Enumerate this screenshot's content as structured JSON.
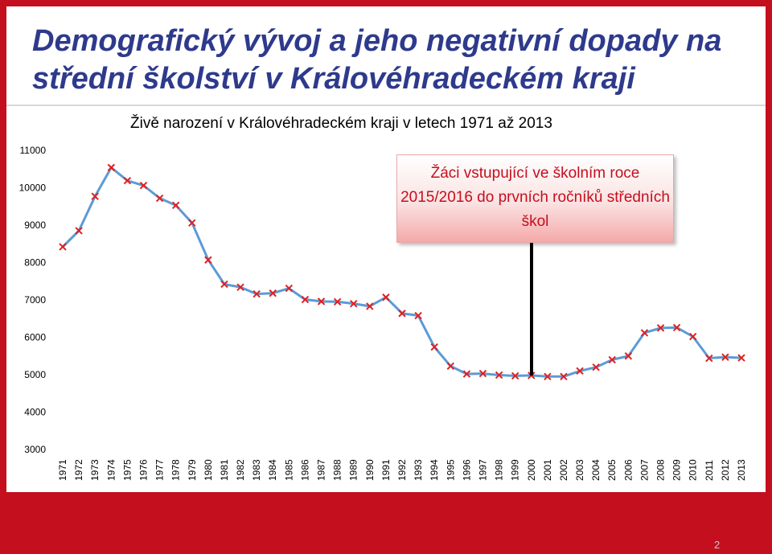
{
  "slide": {
    "title": "Demografický vývoj a jeho negativní dopady na střední školství v Královéhradeckém kraji",
    "page_number": "2",
    "accent_color": "#c40f1e",
    "title_color": "#2e3a8c"
  },
  "callout": {
    "text": "Žáci vstupující ve školním roce 2015/2016 do prvních ročníků středních škol",
    "marker_year": "2000"
  },
  "chart_data": {
    "type": "line",
    "title": "Živě narození v Královéhradeckém kraji v letech 1971 až 2013",
    "xlabel": "",
    "ylabel": "",
    "ylim": [
      3000,
      11000
    ],
    "yticks": [
      3000,
      4000,
      5000,
      6000,
      7000,
      8000,
      9000,
      10000,
      11000
    ],
    "grid": false,
    "line_color": "#5b9bd5",
    "marker_color": "#e02020",
    "categories": [
      "1971",
      "1972",
      "1973",
      "1974",
      "1975",
      "1976",
      "1977",
      "1978",
      "1979",
      "1980",
      "1981",
      "1982",
      "1983",
      "1984",
      "1985",
      "1986",
      "1987",
      "1988",
      "1989",
      "1990",
      "1991",
      "1992",
      "1993",
      "1994",
      "1995",
      "1996",
      "1997",
      "1998",
      "1999",
      "2000",
      "2001",
      "2002",
      "2003",
      "2004",
      "2005",
      "2006",
      "2007",
      "2008",
      "2009",
      "2010",
      "2011",
      "2012",
      "2013"
    ],
    "series": [
      {
        "values": [
          8420,
          8850,
          9770,
          10540,
          10190,
          10060,
          9720,
          9530,
          9060,
          8070,
          7420,
          7340,
          7160,
          7180,
          7310,
          7010,
          6960,
          6950,
          6900,
          6830,
          7070,
          6640,
          6580,
          5740,
          5230,
          5020,
          5030,
          4990,
          4970,
          4980,
          4950,
          4950,
          5100,
          5200,
          5400,
          5500,
          6120,
          6250,
          6260,
          6020,
          5440,
          5470,
          5450
        ]
      }
    ]
  }
}
